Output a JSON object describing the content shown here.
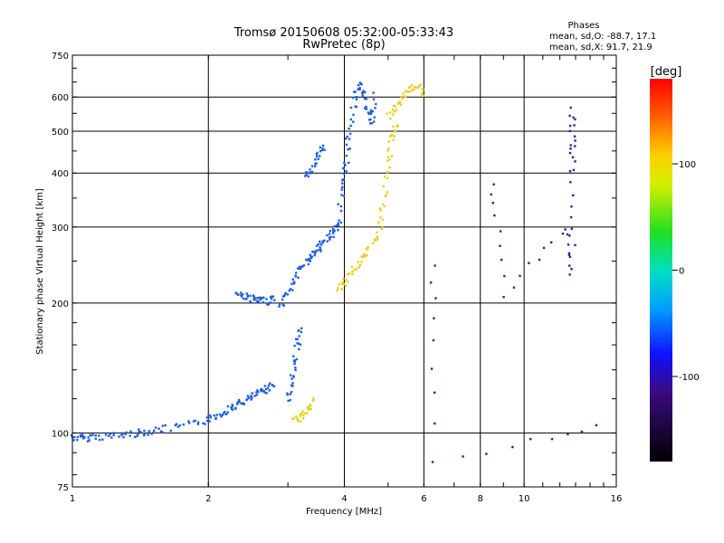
{
  "chart_data": {
    "type": "scatter",
    "title": "Tromsø 20150608 05:32:00-05:33:43",
    "subtitle": "RwPretec (8p)",
    "xlabel": "Frequency [MHz]",
    "ylabel": "Stationary phase Virtual Height [km]",
    "x_scale": "log",
    "y_scale": "log",
    "xlim": [
      1,
      16
    ],
    "ylim": [
      75,
      750
    ],
    "xticks": [
      1,
      2,
      4,
      6,
      8,
      10,
      16
    ],
    "xtick_labels": [
      "1",
      "2",
      "4",
      "6",
      "8",
      "10",
      "16"
    ],
    "yticks": [
      75,
      100,
      200,
      300,
      400,
      500,
      600,
      750
    ],
    "ytick_labels": [
      "75",
      "100",
      "200",
      "300",
      "400",
      "500",
      "600",
      "750"
    ],
    "grid": true,
    "phase_info": {
      "heading": "Phases",
      "line_o": "mean, sd,O: -88.7, 17.1",
      "line_x": "mean, sd,X:  91.7, 21.9"
    },
    "colorbar": {
      "label": "[deg]",
      "range": [
        -180,
        180
      ],
      "ticks": [
        100,
        0,
        -100
      ],
      "tick_labels": [
        "100",
        "0",
        "-100"
      ]
    },
    "series": [
      {
        "name": "",
        "color": "#1f5fdc",
        "segments": [
          {
            "x": [
              1.0,
              1.05,
              1.1,
              1.2,
              1.3,
              1.4,
              1.5,
              1.6,
              1.8,
              2.0
            ],
            "y": [
              98,
              97,
              98,
              98,
              99,
              100,
              101,
              102,
              104,
              107
            ]
          },
          {
            "x": [
              2.0,
              2.1,
              2.2,
              2.3,
              2.4,
              2.5,
              2.6,
              2.7,
              2.8
            ],
            "y": [
              108,
              110,
              113,
              116,
              118,
              121,
              124,
              127,
              130
            ]
          },
          {
            "x": [
              2.3,
              2.4,
              2.5,
              2.6,
              2.7,
              2.8
            ],
            "y": [
              210,
              208,
              205,
              202,
              202,
              205
            ]
          },
          {
            "x": [
              2.9,
              3.0,
              3.1,
              3.2,
              3.3,
              3.4,
              3.5,
              3.6,
              3.7,
              3.8,
              3.9
            ],
            "y": [
              195,
              210,
              225,
              240,
              250,
              258,
              265,
              275,
              285,
              295,
              310
            ]
          },
          {
            "x": [
              3.9,
              4.0,
              4.05,
              4.1,
              4.2,
              4.3,
              4.4,
              4.5,
              4.6,
              4.7
            ],
            "y": [
              330,
              380,
              430,
              500,
              580,
              640,
              620,
              560,
              520,
              610
            ]
          },
          {
            "x": [
              3.0,
              3.05,
              3.1,
              3.15,
              3.2
            ],
            "y": [
              118,
              130,
              145,
              160,
              175
            ]
          },
          {
            "x": [
              3.3,
              3.4,
              3.5,
              3.6
            ],
            "y": [
              390,
              410,
              440,
              460
            ]
          }
        ]
      },
      {
        "name": "",
        "color": "#e8d020",
        "segments": [
          {
            "x": [
              3.9,
              4.0,
              4.2,
              4.4,
              4.6,
              4.8,
              4.9,
              5.0,
              5.1,
              5.2
            ],
            "y": [
              215,
              225,
              240,
              255,
              270,
              300,
              350,
              420,
              480,
              520
            ]
          },
          {
            "x": [
              5.0,
              5.2,
              5.4,
              5.6,
              5.8,
              6.0
            ],
            "y": [
              540,
              570,
              600,
              620,
              640,
              600
            ]
          },
          {
            "x": [
              3.1,
              3.2,
              3.3,
              3.4
            ],
            "y": [
              106,
              109,
              113,
              118
            ]
          }
        ]
      },
      {
        "name": "",
        "color": "#222a9a",
        "segments": [
          {
            "x": [
              8.5,
              9.0,
              12.5,
              12.8,
              12.8,
              12.8,
              12.8
            ],
            "y": [
              380,
              210,
              300,
              230,
              400,
              480,
              560
            ]
          },
          {
            "x": [
              6.3,
              6.3,
              14.5
            ],
            "y": [
              240,
              85,
              105
            ]
          }
        ]
      }
    ]
  }
}
